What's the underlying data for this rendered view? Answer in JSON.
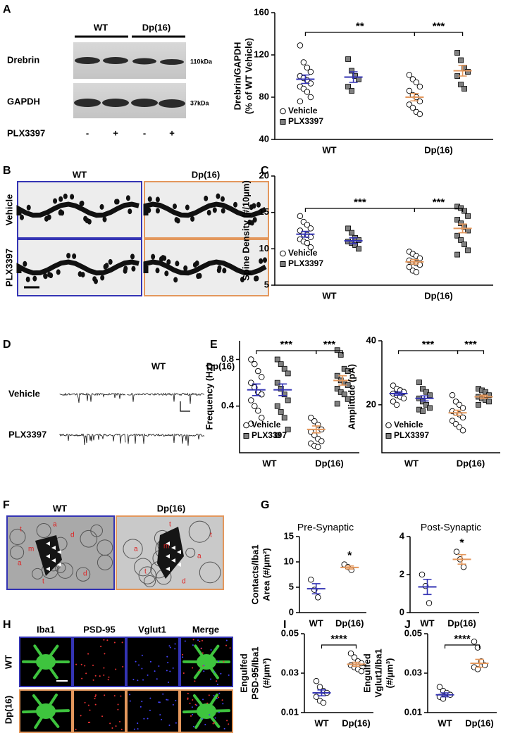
{
  "figure": {
    "panels": [
      "A",
      "B",
      "C",
      "D",
      "E",
      "F",
      "G",
      "H",
      "I",
      "J"
    ],
    "blot": {
      "groups": [
        "WT",
        "Dp(16)"
      ],
      "rows": [
        "Drebrin",
        "GAPDH"
      ],
      "sizes": [
        "110kDa",
        "37kDa"
      ],
      "treatment": "PLX3397",
      "lanes": [
        "-",
        "+",
        "-",
        "+"
      ]
    },
    "spines": {
      "columns": [
        "WT",
        "Dp(16)"
      ],
      "rows": [
        "Vehicle",
        "PLX3397"
      ]
    },
    "traces": {
      "columns": [
        "WT",
        "Dp(16)"
      ],
      "rows": [
        "Vehicle",
        "PLX3397"
      ]
    },
    "em": [
      {
        "title": "WT",
        "labels": [
          "t",
          "m",
          "a",
          "a",
          "t",
          "d",
          "d"
        ]
      },
      {
        "title": "Dp(16)",
        "labels": [
          "t",
          "a",
          "m",
          "a",
          "t",
          "d",
          "t"
        ]
      }
    ],
    "micro": {
      "columns": [
        "Iba1",
        "PSD-95",
        "Vglut1",
        "Merge"
      ],
      "rows": [
        "WT",
        "Dp(16)"
      ]
    }
  },
  "chart_data": [
    {
      "type": "dot",
      "ylabel": [
        "Drebrin/GAPDH",
        "(% of WT Vehicle)"
      ],
      "categories": [
        "WT",
        "Dp(16)"
      ],
      "category_colors": [
        "#3434b4",
        "#e3975c"
      ],
      "ylim": [
        40,
        160
      ],
      "yticks": [
        40,
        80,
        120,
        160
      ],
      "legend": "lower left",
      "series": [
        {
          "name": "Vehicle",
          "marker": "circle",
          "color": "#ffffff",
          "points": [
            [
              129,
              113,
              108,
              104,
              100,
              98,
              96,
              93,
              90,
              88,
              85,
              80,
              76
            ],
            [
              101,
              97,
              94,
              90,
              86,
              82,
              80,
              76,
              73,
              70,
              66,
              64
            ]
          ],
          "mean": [
            97,
            80
          ],
          "sem": [
            4,
            3.5
          ]
        },
        {
          "name": "PLX3397",
          "marker": "square",
          "color": "#808080",
          "points": [
            [
              116,
              105,
              100,
              97,
              90,
              86
            ],
            [
              122,
              115,
              108,
              104,
              100,
              92,
              88
            ]
          ],
          "mean": [
            99,
            105
          ],
          "sem": [
            5,
            5
          ]
        }
      ],
      "significance": [
        "**",
        "***"
      ]
    },
    {
      "type": "dot",
      "ylabel": [
        "Spine Density (#/10µm)"
      ],
      "categories": [
        "WT",
        "Dp(16)"
      ],
      "category_colors": [
        "#3434b4",
        "#e3975c"
      ],
      "ylim": [
        5,
        20
      ],
      "yticks": [
        5,
        10,
        15,
        20
      ],
      "legend": "lower left",
      "series": [
        {
          "name": "Vehicle",
          "marker": "circle",
          "color": "#ffffff",
          "points": [
            [
              14.5,
              13.7,
              13.3,
              12.8,
              12.5,
              12,
              11.9,
              11.6,
              11.3,
              11,
              10.8,
              10.2
            ],
            [
              9.6,
              9.3,
              9,
              8.7,
              8.4,
              8.2,
              8,
              7.8,
              7.5,
              7,
              6.8
            ]
          ],
          "mean": [
            12,
            8.2
          ],
          "sem": [
            0.4,
            0.3
          ]
        },
        {
          "name": "PLX3397",
          "marker": "square",
          "color": "#808080",
          "points": [
            [
              12.8,
              12.2,
              11.5,
              11.2,
              11,
              10.8,
              10.5,
              10
            ],
            [
              15.8,
              15.6,
              15.2,
              14.5,
              14,
              13.5,
              13,
              12.5,
              11.8,
              11.2,
              10.6,
              9.8,
              9.2
            ]
          ],
          "mean": [
            11.1,
            12.8
          ],
          "sem": [
            0.4,
            0.6
          ]
        }
      ],
      "significance": [
        "***",
        "***"
      ]
    },
    {
      "type": "dot",
      "ylabel": [
        "Frequency (Hz)"
      ],
      "categories": [
        "WT",
        "Dp(16)"
      ],
      "category_colors": [
        "#3434b4",
        "#e3975c"
      ],
      "ylim": [
        0,
        0.96
      ],
      "yticks": [
        0.4,
        0.8
      ],
      "legend": "lower left",
      "series": [
        {
          "name": "Vehicle",
          "marker": "circle",
          "color": "#ffffff",
          "points": [
            [
              0.8,
              0.76,
              0.7,
              0.65,
              0.6,
              0.56,
              0.52,
              0.5,
              0.45,
              0.4,
              0.36,
              0.3,
              0.25
            ],
            [
              0.3,
              0.27,
              0.24,
              0.2,
              0.18,
              0.15,
              0.12,
              0.1,
              0.08,
              0.06,
              0.05
            ]
          ],
          "mean": [
            0.54,
            0.2
          ],
          "sem": [
            0.05,
            0.03
          ]
        },
        {
          "name": "PLX3397",
          "marker": "square",
          "color": "#808080",
          "points": [
            [
              0.8,
              0.76,
              0.72,
              0.68,
              0.6,
              0.55,
              0.5,
              0.45,
              0.4,
              0.35,
              0.3,
              0.2,
              0.15
            ],
            [
              0.88,
              0.84,
              0.72,
              0.7,
              0.66,
              0.62,
              0.6,
              0.58,
              0.55,
              0.52,
              0.5,
              0.46,
              0.42
            ]
          ],
          "mean": [
            0.54,
            0.62
          ],
          "sem": [
            0.05,
            0.04
          ]
        }
      ],
      "significance": [
        "***",
        "***"
      ]
    },
    {
      "type": "dot",
      "ylabel": [
        "Amplitude (pA)"
      ],
      "categories": [
        "WT",
        "Dp(16)"
      ],
      "category_colors": [
        "#3434b4",
        "#e3975c"
      ],
      "ylim": [
        5,
        40
      ],
      "yticks": [
        20,
        40
      ],
      "legend": "lower left",
      "series": [
        {
          "name": "Vehicle",
          "marker": "circle",
          "color": "#ffffff",
          "points": [
            [
              26,
              25,
              24.5,
              24,
              23.5,
              23,
              22.5,
              22,
              21,
              20
            ],
            [
              23,
              21,
              20,
              19,
              18,
              17.5,
              17,
              16,
              15,
              14,
              13,
              12
            ]
          ],
          "mean": [
            23.5,
            17.5
          ],
          "sem": [
            0.5,
            0.8
          ]
        },
        {
          "name": "PLX3397",
          "marker": "square",
          "color": "#808080",
          "points": [
            [
              27,
              25,
              24,
              23,
              22,
              21,
              20,
              19,
              18.5,
              18
            ],
            [
              25,
              24.5,
              24,
              23,
              22.5,
              22,
              21.5,
              21,
              20
            ]
          ],
          "mean": [
            22,
            22.5
          ],
          "sem": [
            0.8,
            0.5
          ]
        }
      ],
      "significance": [
        "***",
        "***"
      ]
    },
    {
      "type": "dot",
      "title": "Pre-Synaptic",
      "ylabel": [
        "Contacts/Iba1",
        "Area  (#/µm²)"
      ],
      "categories": [
        "WT",
        "Dp(16)"
      ],
      "category_colors": [
        "#3434b4",
        "#e3975c"
      ],
      "ylim": [
        0,
        15
      ],
      "yticks": [
        0,
        5,
        10,
        15
      ],
      "series": [
        {
          "marker": "circle",
          "color": "#ffffff",
          "points": [
            [
              6.5,
              4.5,
              3
            ],
            [
              9.5,
              9,
              8.4
            ]
          ],
          "mean": [
            4.7,
            8.9
          ],
          "sem": [
            1,
            0.3
          ]
        }
      ],
      "significance": [
        "*"
      ]
    },
    {
      "type": "dot",
      "title": "Post-Synaptic",
      "categories": [
        "WT",
        "Dp(16)"
      ],
      "category_colors": [
        "#3434b4",
        "#e3975c"
      ],
      "ylim": [
        0,
        4
      ],
      "yticks": [
        0,
        2,
        4
      ],
      "series": [
        {
          "marker": "circle",
          "color": "#ffffff",
          "points": [
            [
              2,
              1.4,
              0.5
            ],
            [
              3.2,
              2.8,
              2.4
            ]
          ],
          "mean": [
            1.35,
            2.8
          ],
          "sem": [
            0.4,
            0.25
          ]
        }
      ],
      "significance": [
        "*"
      ]
    },
    {
      "type": "dot",
      "ylabel": [
        "Engulfed",
        "PSD-95/Iba1",
        "(#/µm³)"
      ],
      "categories": [
        "WT",
        "Dp(16)"
      ],
      "category_colors": [
        "#3434b4",
        "#e3975c"
      ],
      "ylim": [
        0.01,
        0.05
      ],
      "yticks": [
        0.01,
        0.03,
        0.05
      ],
      "series": [
        {
          "marker": "circle",
          "color": "#ffffff",
          "points": [
            [
              0.026,
              0.023,
              0.021,
              0.02,
              0.018,
              0.016,
              0.015
            ],
            [
              0.04,
              0.038,
              0.036,
              0.035,
              0.034,
              0.033,
              0.032,
              0.031
            ]
          ],
          "mean": [
            0.02,
            0.0345
          ],
          "sem": [
            0.0015,
            0.001
          ]
        }
      ],
      "significance": [
        "****"
      ]
    },
    {
      "type": "dot",
      "ylabel": [
        "Engulfed",
        "Vglut1/Iba1",
        "(#/µm³)"
      ],
      "categories": [
        "WT",
        "Dp(16)"
      ],
      "category_colors": [
        "#3434b4",
        "#e3975c"
      ],
      "ylim": [
        0.01,
        0.05
      ],
      "yticks": [
        0.01,
        0.03,
        0.05
      ],
      "series": [
        {
          "marker": "circle",
          "color": "#ffffff",
          "points": [
            [
              0.023,
              0.021,
              0.02,
              0.019,
              0.018,
              0.017
            ],
            [
              0.046,
              0.043,
              0.036,
              0.034,
              0.033,
              0.032
            ]
          ],
          "mean": [
            0.019,
            0.035
          ],
          "sem": [
            0.001,
            0.002
          ]
        }
      ],
      "significance": [
        "****"
      ]
    }
  ]
}
